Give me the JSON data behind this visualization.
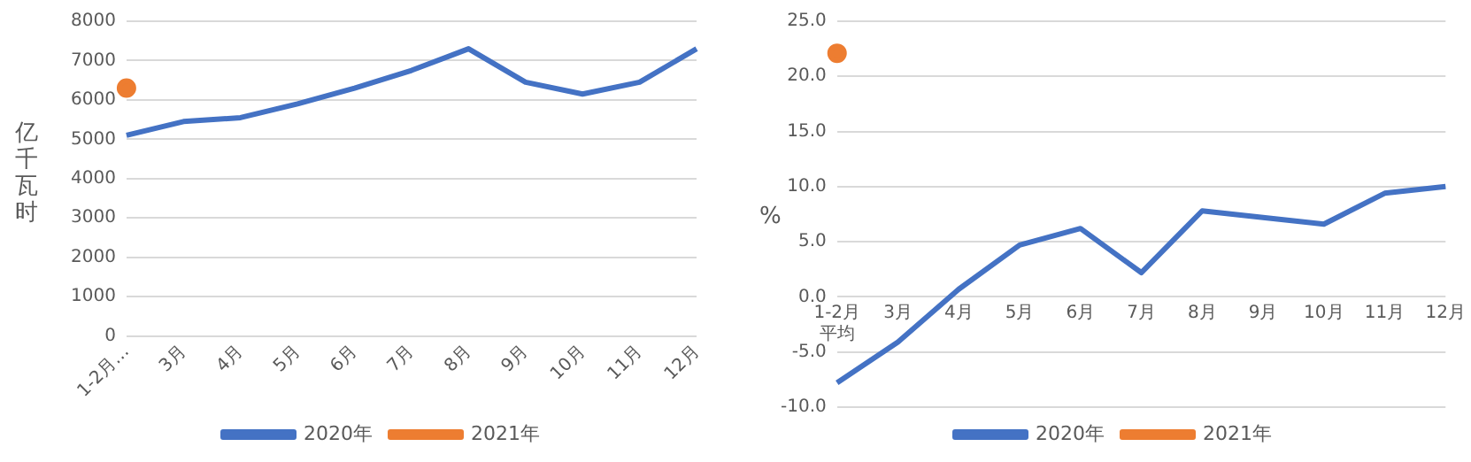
{
  "chart_data": [
    {
      "type": "line",
      "ylabel": "亿千瓦时",
      "categories": [
        "1-2月…",
        "3月",
        "4月",
        "5月",
        "6月",
        "7月",
        "8月",
        "9月",
        "10月",
        "11月",
        "12月"
      ],
      "series": [
        {
          "name": "2020年",
          "color": "#4472c4",
          "marker": "none",
          "values": [
            5100,
            5450,
            5550,
            5900,
            6300,
            6750,
            7300,
            6450,
            6150,
            6450,
            7300
          ]
        },
        {
          "name": "2021年",
          "color": "#ed7d31",
          "marker": "circle",
          "values": [
            6300,
            null,
            null,
            null,
            null,
            null,
            null,
            null,
            null,
            null,
            null
          ]
        }
      ],
      "ylim": [
        0,
        8000
      ],
      "yticks": [
        0,
        1000,
        2000,
        3000,
        4000,
        5000,
        6000,
        7000,
        8000
      ],
      "grid": "y",
      "legend": "bottom"
    },
    {
      "type": "line",
      "ylabel": "%",
      "categories": [
        "1-2月平均",
        "3月",
        "4月",
        "5月",
        "6月",
        "7月",
        "8月",
        "9月",
        "10月",
        "11月",
        "12月"
      ],
      "series": [
        {
          "name": "2020年",
          "color": "#4472c4",
          "marker": "none",
          "values": [
            -7.8,
            -4.1,
            0.7,
            4.7,
            6.2,
            2.2,
            7.8,
            7.2,
            6.6,
            9.4,
            10.0
          ]
        },
        {
          "name": "2021年",
          "color": "#ed7d31",
          "marker": "circle",
          "values": [
            22.1,
            null,
            null,
            null,
            null,
            null,
            null,
            null,
            null,
            null,
            null
          ]
        }
      ],
      "ylim": [
        -10,
        25
      ],
      "yticks": [
        {
          "value": -10,
          "label": "-10.0"
        },
        {
          "value": -5,
          "label": "-5.0"
        },
        {
          "value": 0,
          "label": "0.0"
        },
        {
          "value": 5,
          "label": "5.0"
        },
        {
          "value": 10,
          "label": "10.0"
        },
        {
          "value": 15,
          "label": "15.0"
        },
        {
          "value": 20,
          "label": "20.0"
        },
        {
          "value": 25,
          "label": "25.0"
        }
      ],
      "grid": "y",
      "legend": "bottom"
    }
  ]
}
